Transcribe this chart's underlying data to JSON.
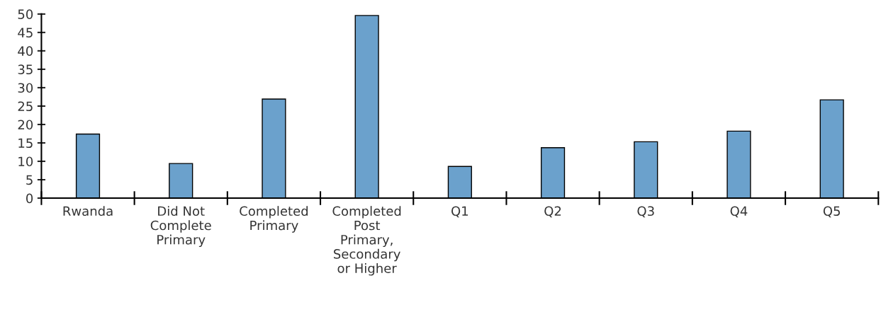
{
  "chart_data": {
    "type": "bar",
    "categories": [
      "Rwanda",
      "Did Not\nComplete\nPrimary",
      "Completed\nPrimary",
      "Completed\nPost\nPrimary,\nSecondary\nor Higher",
      "Q1",
      "Q2",
      "Q3",
      "Q4",
      "Q5"
    ],
    "values": [
      17.4,
      9.4,
      26.9,
      49.6,
      8.6,
      13.7,
      15.3,
      18.2,
      26.7
    ],
    "color": "#5ba3dc",
    "ylim": [
      0,
      50
    ],
    "yticks": [
      0,
      5,
      10,
      15,
      20,
      25,
      30,
      35,
      40,
      45,
      50
    ],
    "grid": false
  }
}
